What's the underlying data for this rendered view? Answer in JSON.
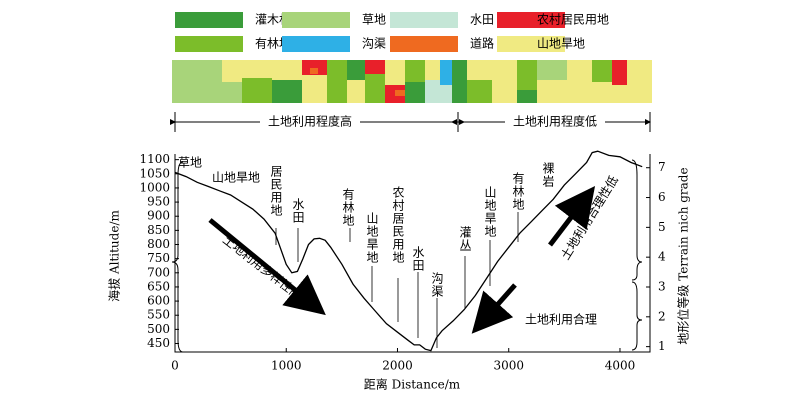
{
  "land_use_legend": [
    {
      "name": "灌木林地",
      "color": "#3a9c3a"
    },
    {
      "name": "草地",
      "color": "#a8d47a"
    },
    {
      "name": "水田",
      "color": "#c4e6d6"
    },
    {
      "name": "农村居民用地",
      "color": "#e8202a"
    },
    {
      "name": "有林地",
      "color": "#7cbd2a"
    },
    {
      "name": "沟渠",
      "color": "#2eb0e6"
    },
    {
      "name": "道路",
      "color": "#ef6a20"
    },
    {
      "name": "山地旱地",
      "color": "#f0ea82"
    }
  ],
  "intensity_labels": [
    "土地利用程度高",
    "土地利用程度低"
  ],
  "chart_data": {
    "type": "line",
    "x": [
      0,
      100,
      200,
      300,
      400,
      500,
      600,
      700,
      800,
      900,
      1000,
      1050,
      1100,
      1150,
      1200,
      1250,
      1300,
      1350,
      1400,
      1500,
      1600,
      1700,
      1800,
      1900,
      2000,
      2100,
      2150,
      2200,
      2250,
      2300,
      2350,
      2400,
      2500,
      2600,
      2700,
      2800,
      2900,
      3000,
      3100,
      3200,
      3300,
      3400,
      3500,
      3600,
      3700,
      3750,
      3800,
      3900,
      4000,
      4100,
      4200
    ],
    "values": [
      1055,
      1040,
      1020,
      1005,
      990,
      975,
      950,
      925,
      890,
      840,
      730,
      700,
      705,
      750,
      800,
      820,
      822,
      815,
      790,
      730,
      660,
      610,
      565,
      520,
      490,
      460,
      445,
      445,
      430,
      425,
      470,
      495,
      530,
      570,
      620,
      680,
      740,
      790,
      840,
      880,
      920,
      960,
      1010,
      1050,
      1090,
      1125,
      1130,
      1115,
      1110,
      1090,
      1075
    ],
    "color": "#000000",
    "xlabel": "距离 Distance/m",
    "ylabel": "海拔 Altitude/m",
    "y2label": "地形位等级 Terrain nich grade",
    "xlim": [
      0,
      4270
    ],
    "xticks": [
      0,
      1000,
      2000,
      3000,
      4000
    ],
    "ylim": [
      420,
      1120
    ],
    "yticks": [
      450,
      500,
      550,
      600,
      650,
      700,
      750,
      800,
      850,
      900,
      950,
      1000,
      1050,
      1100
    ],
    "y2lim": [
      0.82,
      7.46
    ],
    "y2ticks": [
      1,
      2,
      3,
      4,
      5,
      6,
      7
    ],
    "annotations": [
      "草地",
      "山地旱地",
      "居民用地",
      "水田",
      "有林地",
      "山地旱地",
      "农村居民用地",
      "水田",
      "沟渠",
      "灌丛",
      "山地旱地",
      "有林地",
      "裸岩",
      "土地利用多样性高",
      "土地利用合理",
      "土地利用合理性低"
    ]
  }
}
